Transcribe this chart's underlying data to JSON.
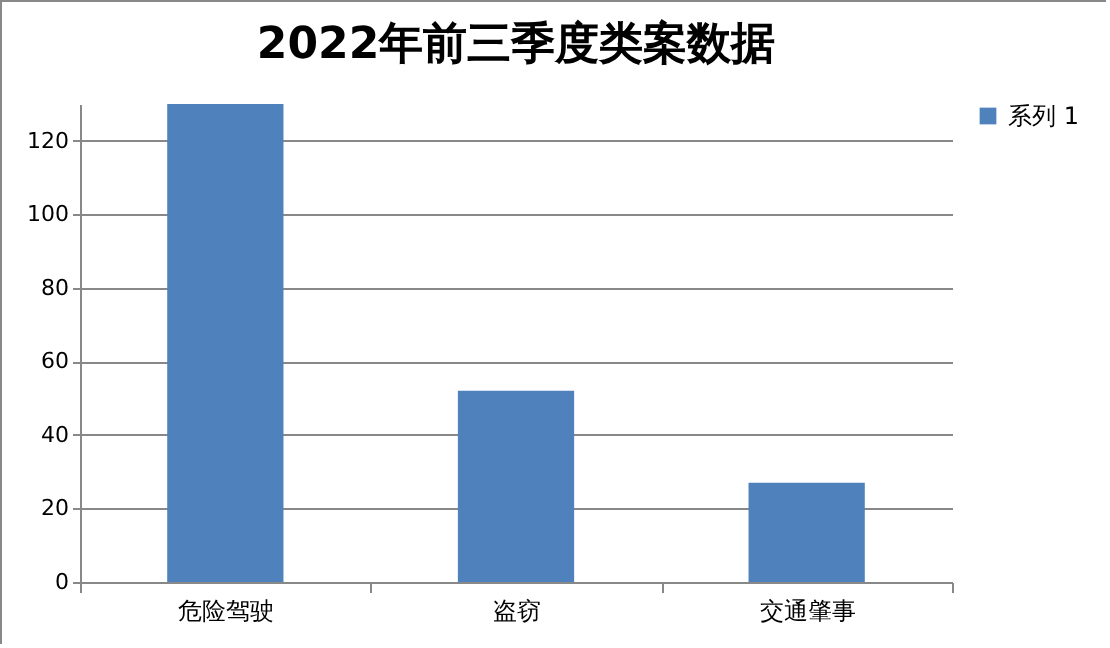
{
  "chart_data": {
    "type": "bar",
    "title": "2022年前三季度类案数据",
    "categories": [
      "危险驾驶",
      "盗窃",
      "交通肇事"
    ],
    "series": [
      {
        "name": "系列 1",
        "color": "#4f81bd",
        "values": [
          130,
          52,
          27
        ]
      }
    ],
    "ylim": [
      0,
      130
    ],
    "yticks": [
      0,
      20,
      40,
      60,
      80,
      100,
      120
    ],
    "grid": "y",
    "legend": "right"
  }
}
